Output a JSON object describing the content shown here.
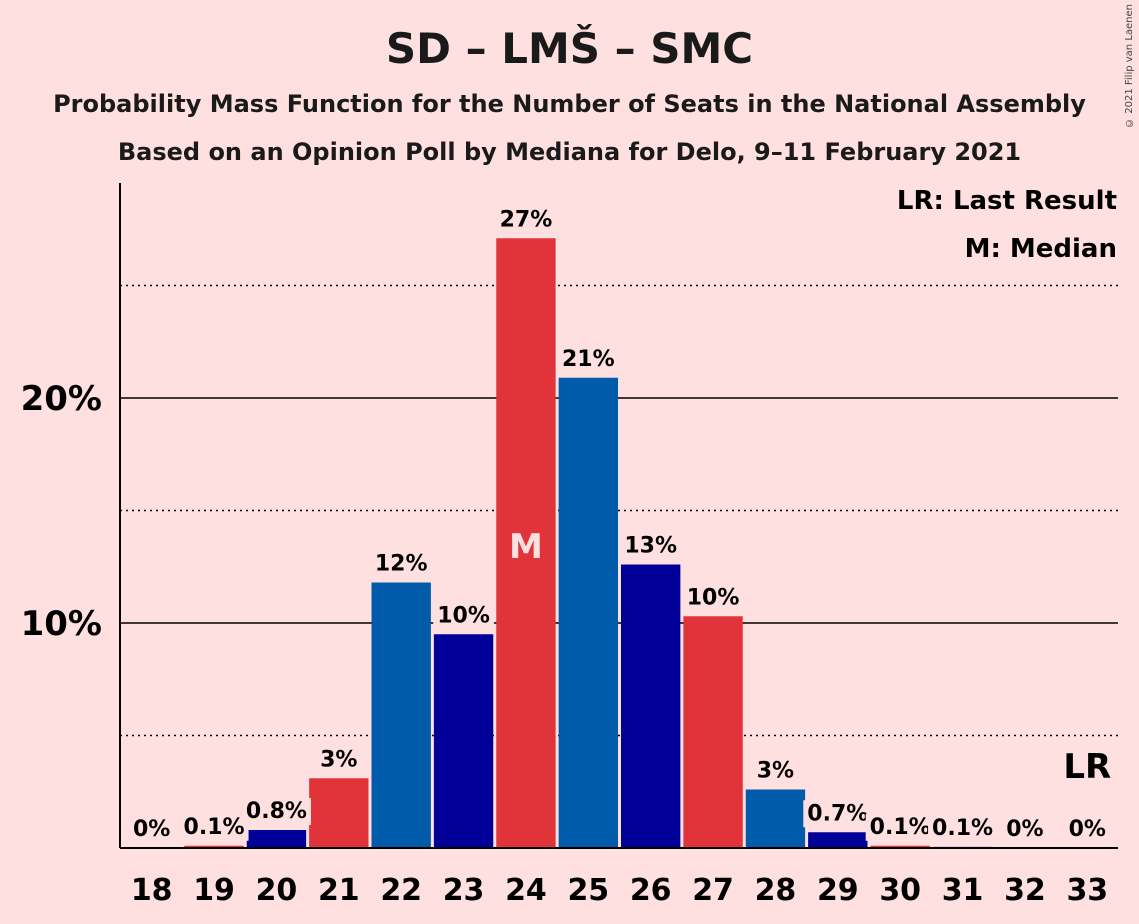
{
  "title": "SD – LMŠ – SMC",
  "subtitle1": "Probability Mass Function for the Number of Seats in the National Assembly",
  "subtitle2": "Based on an Opinion Poll by Mediana for Delo, 9–11 February 2021",
  "copyright": "© 2021 Filip van Laenen",
  "legend": {
    "last_result": "LR: Last Result",
    "median": "M: Median"
  },
  "markers": {
    "median_label": "M",
    "median_seat": 24,
    "last_result_label": "LR",
    "last_result_seat": 33
  },
  "colors": {
    "background": "#FFE0E0",
    "red": "#E0343A",
    "blue": "#005BAA",
    "navy": "#000099"
  },
  "chart_data": {
    "type": "bar",
    "categories": [
      "18",
      "19",
      "20",
      "21",
      "22",
      "23",
      "24",
      "25",
      "26",
      "27",
      "28",
      "29",
      "30",
      "31",
      "32",
      "33"
    ],
    "values": [
      0,
      0.1,
      0.8,
      3.1,
      11.8,
      9.5,
      27.1,
      20.9,
      12.6,
      10.3,
      2.6,
      0.7,
      0.1,
      0.05,
      0,
      0
    ],
    "labels": [
      "0%",
      "0.1%",
      "0.8%",
      "3%",
      "12%",
      "10%",
      "27%",
      "21%",
      "13%",
      "10%",
      "3%",
      "0.7%",
      "0.1%",
      "0.1%",
      "0%",
      "0%"
    ],
    "bar_colors": [
      "navy",
      "red",
      "navy",
      "red",
      "blue",
      "navy",
      "red",
      "blue",
      "navy",
      "red",
      "blue",
      "navy",
      "red",
      "navy",
      "red",
      "blue"
    ],
    "y_ticks": [
      10,
      20
    ],
    "y_tick_labels": [
      "10%",
      "20%"
    ],
    "y_minor_ticks": [
      5,
      15,
      25
    ],
    "ylim": [
      0,
      29.6
    ],
    "grid": true
  }
}
